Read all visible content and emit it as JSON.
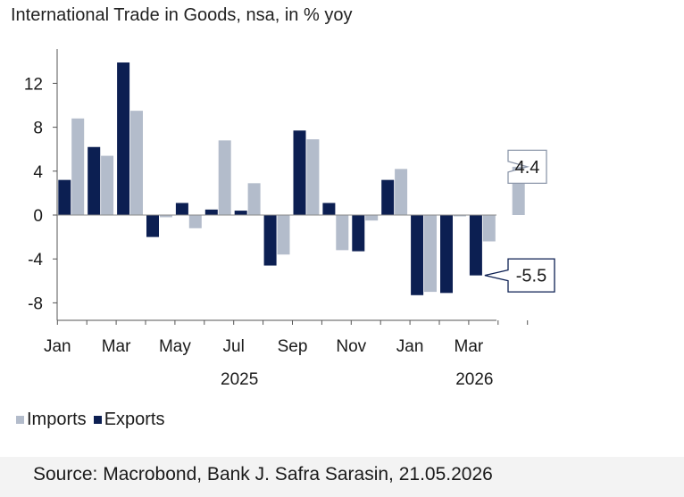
{
  "chart_data": {
    "type": "bar",
    "title": "International Trade in Goods, nsa, in % yoy",
    "xlabel": "",
    "ylabel": "",
    "ylim": [
      -9.5,
      15
    ],
    "yticks": [
      12,
      8,
      4,
      0,
      -4,
      -8
    ],
    "xtick_labels": [
      {
        "month_index": 0,
        "label": "Jan"
      },
      {
        "month_index": 2,
        "label": "Mar"
      },
      {
        "month_index": 4,
        "label": "May"
      },
      {
        "month_index": 6,
        "label": "Jul"
      },
      {
        "month_index": 8,
        "label": "Sep"
      },
      {
        "month_index": 10,
        "label": "Nov"
      },
      {
        "month_index": 12,
        "label": "Jan"
      },
      {
        "month_index": 14,
        "label": "Mar"
      }
    ],
    "year_labels": [
      {
        "month_index": 6.5,
        "label": "2025"
      },
      {
        "month_index": 14.5,
        "label": "2026"
      }
    ],
    "categories": [
      "Jan 2025",
      "Feb 2025",
      "Mar 2025",
      "Apr 2025",
      "May 2025",
      "Jun 2025",
      "Jul 2025",
      "Aug 2025",
      "Sep 2025",
      "Oct 2025",
      "Nov 2025",
      "Dec 2025",
      "Jan 2026",
      "Feb 2026",
      "Mar 2026",
      "Apr 2026"
    ],
    "series": [
      {
        "name": "Imports",
        "color": "#b3bccb",
        "values": [
          8.8,
          5.4,
          9.5,
          -0.2,
          -1.2,
          6.8,
          2.9,
          -3.6,
          6.9,
          -3.2,
          -0.5,
          4.2,
          -7.0,
          -0.1,
          -2.4,
          4.4
        ]
      },
      {
        "name": "Exports",
        "color": "#0c1f52",
        "values": [
          3.2,
          6.2,
          13.9,
          -2.0,
          1.1,
          0.5,
          0.4,
          -4.6,
          7.7,
          1.1,
          -3.3,
          3.2,
          -7.3,
          -7.1,
          -5.5,
          null
        ]
      }
    ],
    "annotations": [
      {
        "series": "Imports",
        "month_index": 15,
        "label": "4.4"
      },
      {
        "series": "Exports",
        "month_index": 14,
        "label": "-5.5"
      }
    ],
    "legend": "bottom-left",
    "grid": false
  },
  "source": "Source: Macrobond, Bank J. Safra Sarasin, 21.05.2026"
}
